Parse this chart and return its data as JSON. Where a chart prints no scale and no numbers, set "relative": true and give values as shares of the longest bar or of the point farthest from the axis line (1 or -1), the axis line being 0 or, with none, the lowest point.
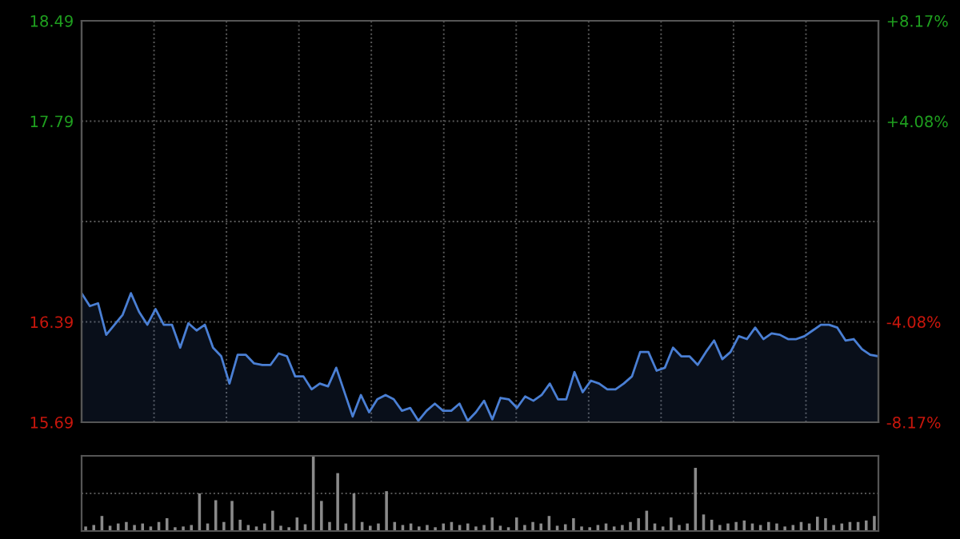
{
  "chart_data": [
    {
      "type": "area",
      "categories": [
        null,
        null,
        null,
        null,
        null,
        null,
        null,
        null,
        null,
        null,
        null,
        null,
        null,
        null,
        null,
        null,
        null,
        null,
        null,
        null,
        null,
        null,
        null,
        null,
        null,
        null,
        null,
        null,
        null,
        null,
        null,
        null,
        null,
        null,
        null,
        null,
        null,
        null,
        null,
        null,
        null,
        null,
        null,
        null,
        null,
        null,
        null,
        null,
        null,
        null,
        null,
        null,
        null,
        null,
        null,
        null,
        null,
        null,
        null,
        null,
        null,
        null,
        null,
        null,
        null,
        null,
        null,
        null,
        null,
        null,
        null,
        null,
        null,
        null,
        null,
        null,
        null,
        null,
        null,
        null,
        null,
        null,
        null,
        null,
        null,
        null,
        null,
        null,
        null,
        null,
        null,
        null,
        null,
        null,
        null,
        null,
        null,
        null
      ],
      "series": [
        {
          "color": "#4a7fd4",
          "values": [
            16.59,
            16.5,
            16.52,
            16.3,
            16.37,
            16.44,
            16.59,
            16.46,
            16.37,
            16.48,
            16.37,
            16.37,
            16.21,
            16.38,
            16.33,
            16.37,
            16.21,
            16.15,
            15.96,
            16.16,
            16.16,
            16.1,
            16.09,
            16.09,
            16.17,
            16.15,
            16.01,
            16.01,
            15.92,
            15.96,
            15.94,
            16.07,
            15.9,
            15.73,
            15.88,
            15.76,
            15.85,
            15.88,
            15.85,
            15.77,
            15.79,
            15.7,
            15.77,
            15.82,
            15.77,
            15.77,
            15.82,
            15.7,
            15.76,
            15.84,
            15.71,
            15.86,
            15.85,
            15.79,
            15.87,
            15.84,
            15.88,
            15.96,
            15.85,
            15.85,
            16.04,
            15.9,
            15.98,
            15.96,
            15.92,
            15.92,
            15.96,
            16.01,
            16.18,
            16.18,
            16.05,
            16.07,
            16.21,
            16.15,
            16.15,
            16.09,
            16.18,
            16.26,
            16.13,
            16.18,
            16.29,
            16.27,
            16.35,
            16.27,
            16.31,
            16.3,
            16.27,
            16.27,
            16.29,
            16.33,
            16.37,
            16.37,
            16.35,
            16.26,
            16.27,
            16.2,
            16.16,
            16.15
          ]
        }
      ],
      "ylim": [
        15.69,
        18.49
      ],
      "yticks": [
        15.69,
        16.39,
        {
          "value": 17.09,
          "label": null
        },
        17.79,
        18.49
      ],
      "y2lim": [
        -8.17,
        8.17
      ],
      "y2ticks": [
        {
          "value": -8.17,
          "label": "-8.17%"
        },
        {
          "value": -4.08,
          "label": "-4.08%"
        },
        {
          "value": 0,
          "label": null
        },
        {
          "value": 4.08,
          "label": "+4.08%"
        },
        {
          "value": 8.17,
          "label": "+8.17%"
        }
      ],
      "grid": true,
      "legend": false,
      "marker": "none",
      "line_style": "solid"
    },
    {
      "type": "bar",
      "relative": true,
      "tick_labels": false,
      "categories": [
        null,
        null,
        null,
        null,
        null,
        null,
        null,
        null,
        null,
        null,
        null,
        null,
        null,
        null,
        null,
        null,
        null,
        null,
        null,
        null,
        null,
        null,
        null,
        null,
        null,
        null,
        null,
        null,
        null,
        null,
        null,
        null,
        null,
        null,
        null,
        null,
        null,
        null,
        null,
        null,
        null,
        null,
        null,
        null,
        null,
        null,
        null,
        null,
        null,
        null,
        null,
        null,
        null,
        null,
        null,
        null,
        null,
        null,
        null,
        null,
        null,
        null,
        null,
        null,
        null,
        null,
        null,
        null,
        null,
        null,
        null,
        null,
        null,
        null,
        null,
        null,
        null,
        null,
        null,
        null,
        null,
        null,
        null,
        null,
        null,
        null,
        null,
        null,
        null,
        null,
        null,
        null,
        null,
        null,
        null,
        null,
        null,
        null
      ],
      "series": [
        {
          "color": "#8a8a8a",
          "values": [
            0.06,
            0.08,
            0.2,
            0.07,
            0.1,
            0.12,
            0.08,
            0.1,
            0.06,
            0.12,
            0.17,
            0.05,
            0.06,
            0.08,
            0.5,
            0.1,
            0.41,
            0.12,
            0.4,
            0.15,
            0.08,
            0.06,
            0.1,
            0.27,
            0.07,
            0.05,
            0.18,
            0.09,
            1.0,
            0.4,
            0.12,
            0.77,
            0.1,
            0.5,
            0.12,
            0.07,
            0.1,
            0.53,
            0.12,
            0.08,
            0.1,
            0.06,
            0.08,
            0.05,
            0.1,
            0.12,
            0.08,
            0.1,
            0.06,
            0.08,
            0.18,
            0.07,
            0.05,
            0.18,
            0.08,
            0.12,
            0.1,
            0.2,
            0.07,
            0.09,
            0.17,
            0.06,
            0.05,
            0.08,
            0.1,
            0.06,
            0.08,
            0.12,
            0.17,
            0.27,
            0.1,
            0.06,
            0.18,
            0.08,
            0.1,
            0.84,
            0.22,
            0.15,
            0.08,
            0.1,
            0.12,
            0.14,
            0.1,
            0.08,
            0.12,
            0.1,
            0.06,
            0.08,
            0.12,
            0.1,
            0.19,
            0.17,
            0.08,
            0.1,
            0.12,
            0.12,
            0.14,
            0.2
          ]
        }
      ],
      "ref_lines": [
        {
          "axis": "y",
          "value": 0.5,
          "color": "#555555",
          "line_style": "dotted"
        }
      ],
      "legend": false
    }
  ]
}
